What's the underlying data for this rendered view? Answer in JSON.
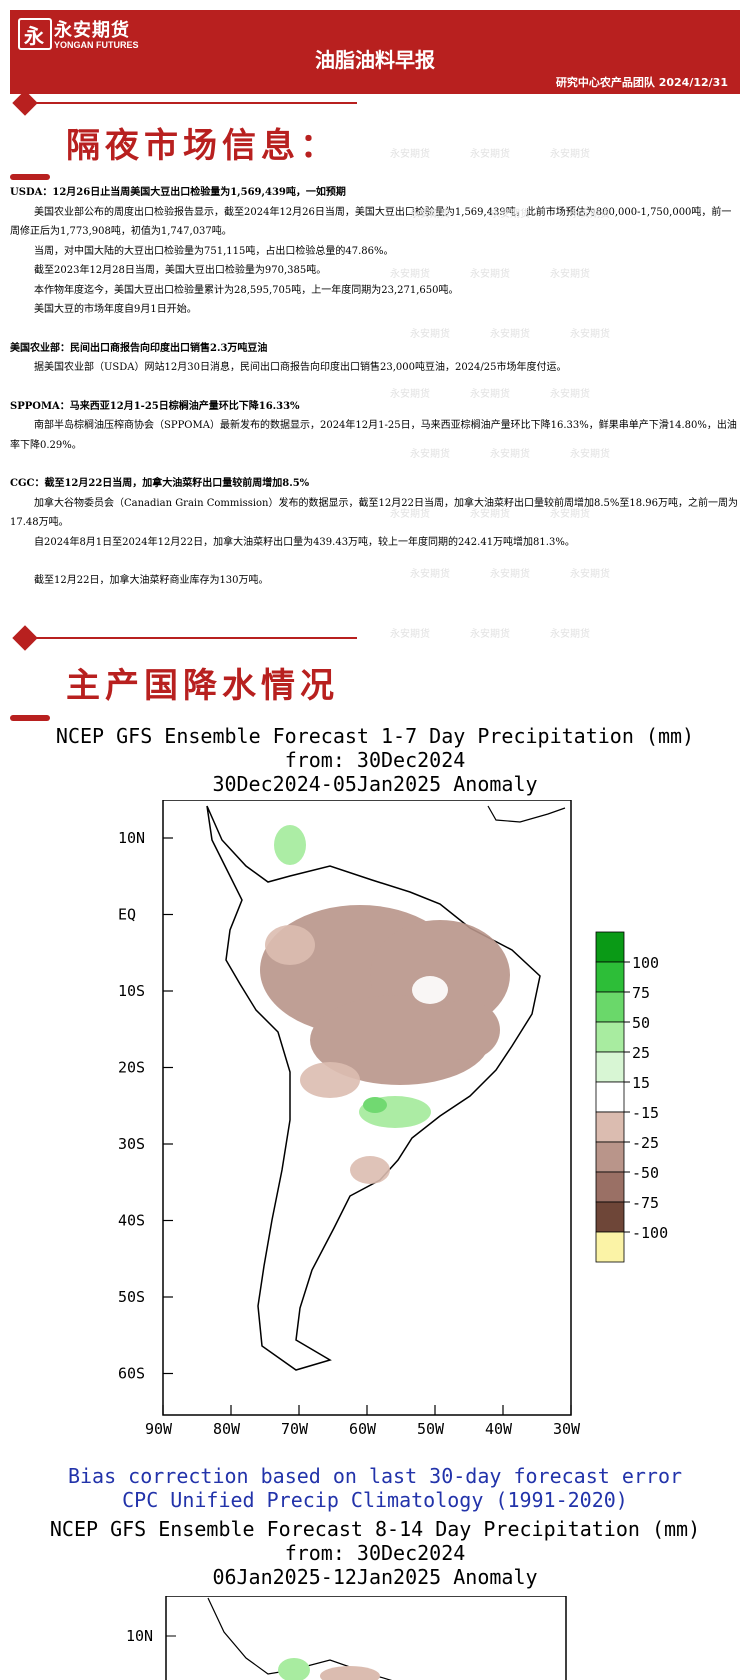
{
  "header": {
    "logo_glyph": "永",
    "company_cn": "永安期货",
    "company_en": "YONGAN FUTURES",
    "report_title": "油脂油料早报",
    "team_date": "研究中心农产品团队  2024/12/31"
  },
  "watermark": {
    "text": "永安期货"
  },
  "section1": {
    "title": "隔夜市场信息：",
    "items": [
      {
        "heading": "USDA：12月26日止当周美国大豆出口检验量为1,569,439吨，一如预期",
        "paragraphs": [
          "美国农业部公布的周度出口检验报告显示，截至2024年12月26日当周，美国大豆出口检验量为1,569,439吨，此前市场预估为800,000-1,750,000吨，前一周修正后为1,773,908吨，初值为1,747,037吨。",
          "当周，对中国大陆的大豆出口检验量为751,115吨，占出口检验总量的47.86%。",
          "截至2023年12月28日当周，美国大豆出口检验量为970,385吨。",
          "本作物年度迄今，美国大豆出口检验量累计为28,595,705吨，上一年度同期为23,271,650吨。",
          "美国大豆的市场年度自9月1日开始。"
        ]
      },
      {
        "heading": "美国农业部：民间出口商报告向印度出口销售2.3万吨豆油",
        "paragraphs": [
          "据美国农业部（USDA）网站12月30日消息，民间出口商报告向印度出口销售23,000吨豆油，2024/25市场年度付运。"
        ]
      },
      {
        "heading": "SPPOMA：马来西亚12月1-25日棕榈油产量环比下降16.33%",
        "paragraphs": [
          "南部半岛棕榈油压榨商协会（SPPOMA）最新发布的数据显示，2024年12月1-25日，马来西亚棕榈油产量环比下降16.33%，鲜果串单产下滑14.80%，出油率下降0.29%。"
        ]
      },
      {
        "heading": "CGC：截至12月22日当周，加拿大油菜籽出口量较前周增加8.5%",
        "paragraphs": [
          "加拿大谷物委员会（Canadian Grain Commission）发布的数据显示，截至12月22日当周，加拿大油菜籽出口量较前周增加8.5%至18.96万吨，之前一周为17.48万吨。",
          "自2024年8月1日至2024年12月22日，加拿大油菜籽出口量为439.43万吨，较上一年度同期的242.41万吨增加81.3%。",
          "",
          "截至12月22日，加拿大油菜籽商业库存为130万吨。"
        ]
      }
    ]
  },
  "section2": {
    "title": "主产国降水情况"
  },
  "map1": {
    "line1": "NCEP GFS Ensemble Forecast 1-7 Day Precipitation (mm)",
    "line2": "from: 30Dec2024",
    "line3": "30Dec2024-05Jan2025 Anomaly",
    "lat_labels": [
      "10N",
      "EQ",
      "10S",
      "20S",
      "30S",
      "40S",
      "50S",
      "60S"
    ],
    "lon_labels": [
      "90W",
      "80W",
      "70W",
      "60W",
      "50W",
      "40W",
      "30W"
    ],
    "legend_labels": [
      "100",
      "75",
      "50",
      "25",
      "15",
      "-15",
      "-25",
      "-50",
      "-75",
      "-100"
    ],
    "legend_colors": [
      "#0a9a16",
      "#2dbe38",
      "#6ad86a",
      "#a8eca0",
      "#d8f6d4",
      "#ffffff",
      "#dbbcb0",
      "#b9958a",
      "#9a7065",
      "#6e4638",
      "#fbf3a6"
    ]
  },
  "bias_note": {
    "line1": "Bias correction based on last 30-day forecast error",
    "line2": "CPC Unified Precip Climatology (1991-2020)"
  },
  "map2": {
    "line1": "NCEP GFS Ensemble Forecast 8-14 Day Precipitation (mm)",
    "line2": "from: 30Dec2024",
    "line3": "06Jan2025-12Jan2025 Anomaly",
    "lat_labels": [
      "10N"
    ]
  }
}
